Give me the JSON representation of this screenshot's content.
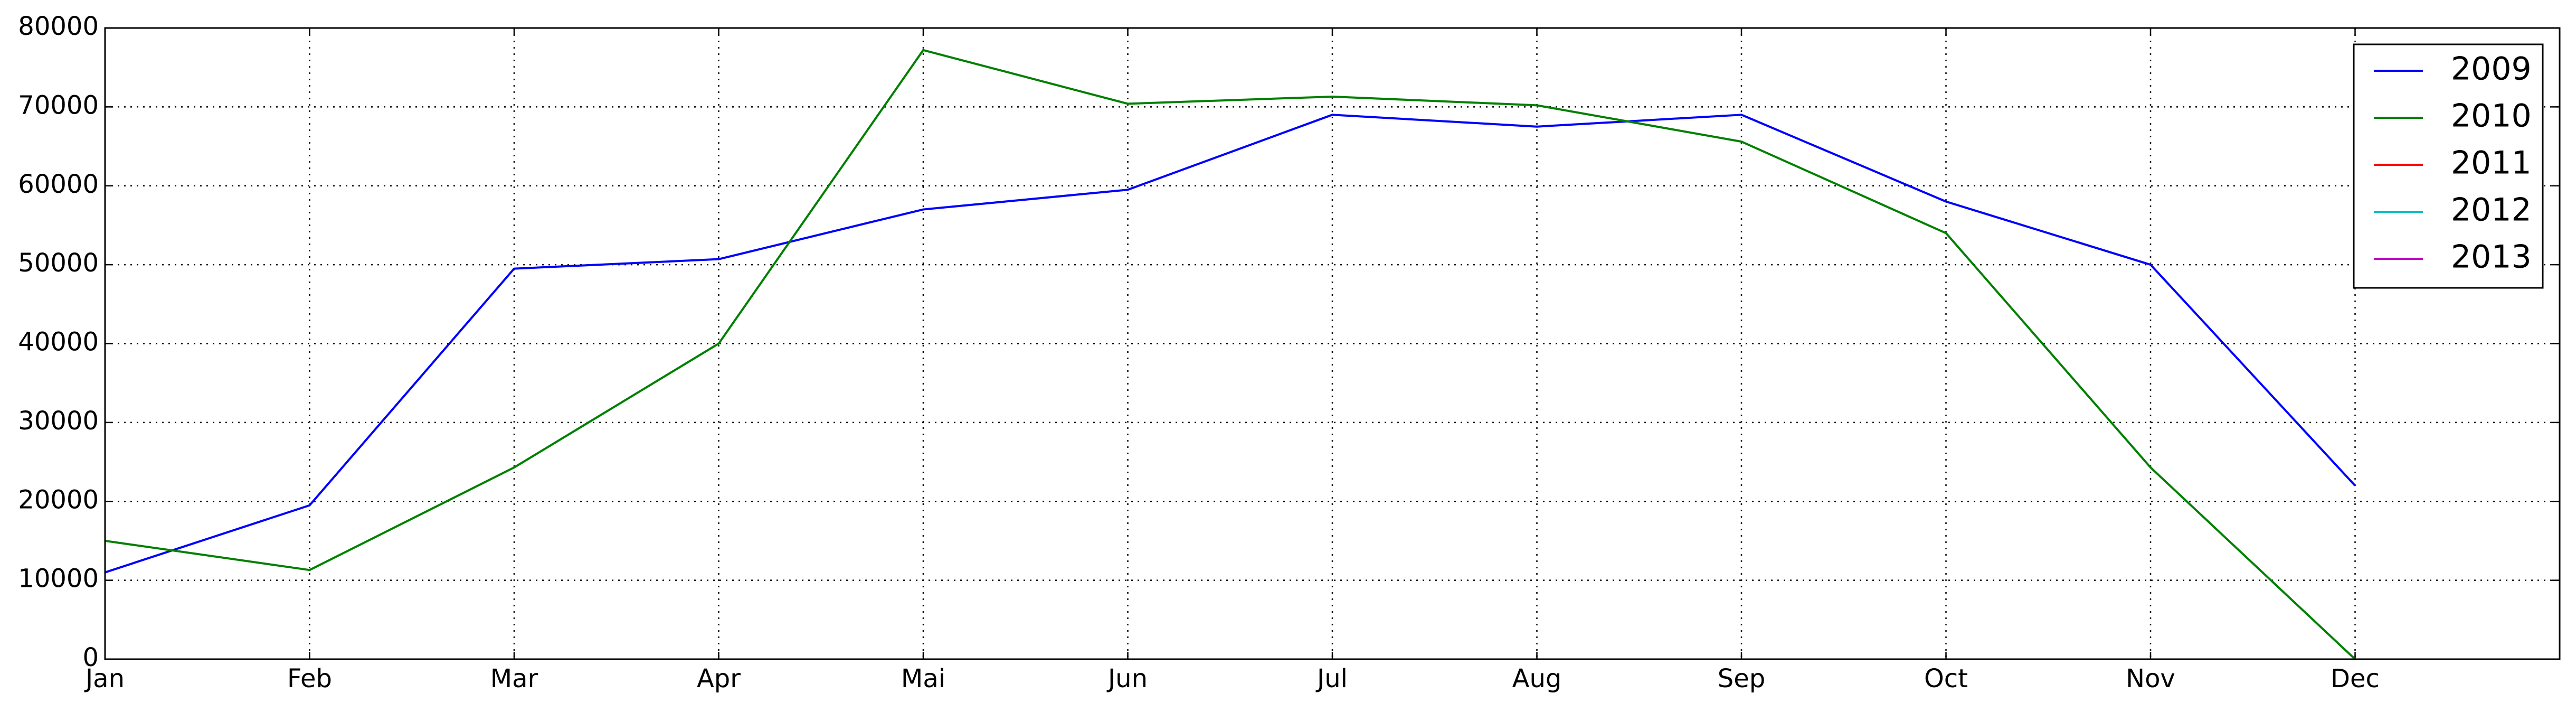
{
  "chart_data": {
    "type": "line",
    "categories": [
      "Jan",
      "Feb",
      "Mar",
      "Apr",
      "Mai",
      "Jun",
      "Jul",
      "Aug",
      "Sep",
      "Oct",
      "Nov",
      "Dec"
    ],
    "xlim": [
      0,
      12
    ],
    "series": [
      {
        "name": "2009",
        "color": "#0000ff",
        "values": [
          11000,
          19500,
          49500,
          50700,
          57000,
          59500,
          69000,
          67500,
          69000,
          58000,
          50000,
          22000
        ]
      },
      {
        "name": "2010",
        "color": "#008000",
        "values": [
          15000,
          11300,
          24300,
          40000,
          77200,
          70400,
          71300,
          70200,
          65600,
          54000,
          24300,
          0
        ]
      },
      {
        "name": "2011",
        "color": "#ff0000",
        "values": [
          null,
          null,
          null,
          null,
          null,
          null,
          null,
          null,
          null,
          null,
          null,
          null
        ]
      },
      {
        "name": "2012",
        "color": "#00bfbf",
        "values": [
          null,
          null,
          null,
          null,
          null,
          null,
          null,
          null,
          null,
          null,
          null,
          null
        ]
      },
      {
        "name": "2013",
        "color": "#bf00bf",
        "values": [
          null,
          null,
          null,
          null,
          null,
          null,
          null,
          null,
          null,
          null,
          null,
          null
        ]
      }
    ],
    "ylim": [
      0,
      80000
    ],
    "yticks": [
      0,
      10000,
      20000,
      30000,
      40000,
      50000,
      60000,
      70000,
      80000
    ],
    "grid": true,
    "legend": "upper right"
  }
}
